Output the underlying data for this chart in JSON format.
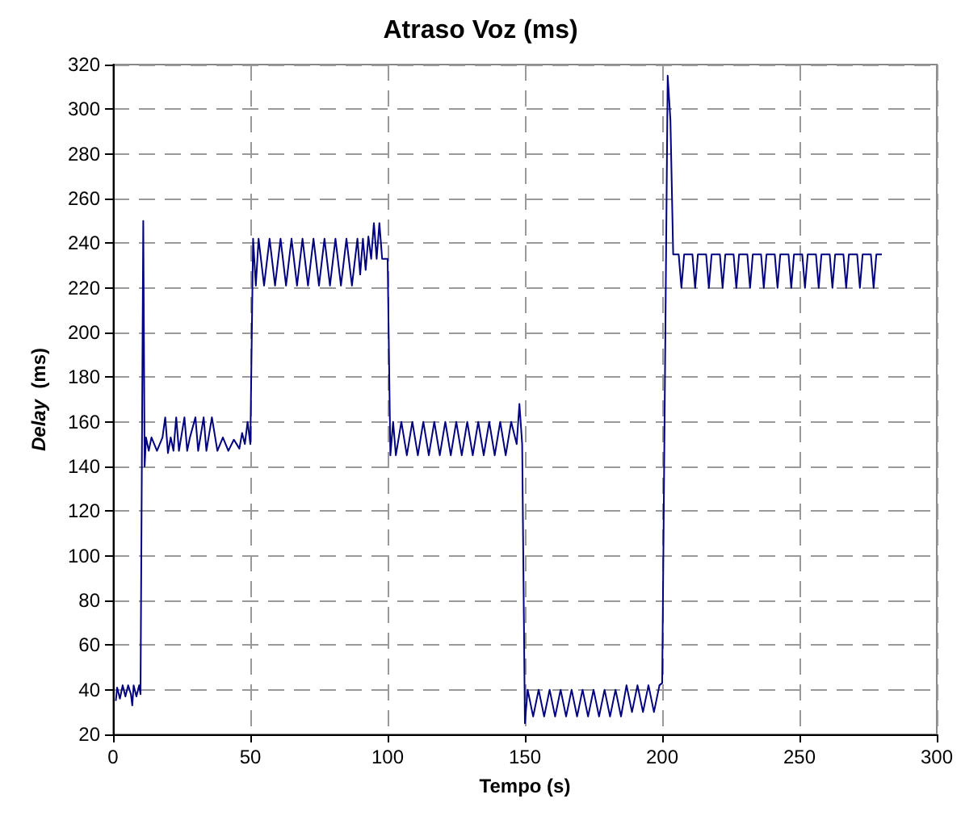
{
  "chart_data": {
    "type": "line",
    "title": "Atraso Voz (ms)",
    "xlabel": "Tempo (s)",
    "ylabel": "Delay  (ms)",
    "xlim": [
      0,
      300
    ],
    "xticks": [
      0,
      50,
      100,
      150,
      200,
      250,
      300
    ],
    "ylim": [
      20,
      320
    ],
    "yticks": [
      20,
      40,
      60,
      80,
      100,
      120,
      140,
      160,
      180,
      200,
      220,
      240,
      260,
      280,
      300,
      320
    ],
    "grid": true,
    "marker": "none",
    "line_style": "solid",
    "x": [
      1,
      1.5,
      2.5,
      3.5,
      4.5,
      5.5,
      6.5,
      7,
      7.5,
      8.5,
      9.5,
      10,
      11,
      11.5,
      12,
      13,
      14,
      16,
      18,
      19,
      20,
      21,
      22,
      23,
      24,
      26,
      27,
      28,
      30,
      31,
      33,
      34,
      36,
      38,
      40,
      42,
      44,
      46,
      47,
      48,
      49,
      50,
      51,
      52,
      53,
      55,
      57,
      59,
      61,
      63,
      65,
      67,
      69,
      71,
      73,
      75,
      77,
      79,
      81,
      83,
      85,
      87,
      89,
      90,
      91,
      92,
      93,
      94,
      95,
      96,
      97,
      98,
      99,
      100,
      101,
      102,
      103,
      105,
      107,
      109,
      111,
      113,
      115,
      117,
      119,
      121,
      123,
      125,
      127,
      129,
      131,
      133,
      135,
      137,
      139,
      141,
      143,
      145,
      147,
      148,
      149,
      150,
      151,
      153,
      155,
      157,
      159,
      161,
      163,
      165,
      167,
      169,
      171,
      173,
      175,
      177,
      179,
      181,
      183,
      185,
      187,
      189,
      191,
      193,
      195,
      197,
      199,
      200,
      202,
      203,
      204,
      206,
      207,
      208,
      211,
      212,
      213,
      216,
      217,
      218,
      221,
      222,
      223,
      226,
      227,
      228,
      231,
      232,
      233,
      236,
      237,
      238,
      241,
      242,
      243,
      246,
      247,
      248,
      251,
      252,
      253,
      256,
      257,
      258,
      261,
      262,
      263,
      266,
      267,
      268,
      271,
      272,
      273,
      276,
      277,
      278,
      280
    ],
    "series": [
      {
        "color": "#000080",
        "values": [
          35,
          41,
          36,
          42,
          37,
          42,
          38,
          33,
          42,
          37,
          42,
          38,
          250,
          140,
          153,
          147,
          153,
          147,
          153,
          162,
          146,
          153,
          147,
          162,
          147,
          162,
          147,
          153,
          162,
          147,
          162,
          147,
          162,
          147,
          153,
          147,
          152,
          148,
          155,
          150,
          160,
          150,
          242,
          221,
          242,
          221,
          242,
          221,
          242,
          221,
          242,
          221,
          242,
          221,
          242,
          221,
          242,
          221,
          242,
          221,
          242,
          221,
          242,
          226,
          242,
          228,
          243,
          233,
          249,
          233,
          249,
          233,
          233,
          233,
          145,
          160,
          145,
          160,
          145,
          160,
          145,
          160,
          145,
          160,
          145,
          160,
          145,
          160,
          145,
          160,
          145,
          160,
          145,
          160,
          145,
          160,
          145,
          160,
          150,
          168,
          150,
          25,
          40,
          28,
          40,
          28,
          40,
          28,
          40,
          28,
          40,
          28,
          40,
          28,
          40,
          28,
          40,
          28,
          40,
          28,
          42,
          30,
          42,
          30,
          42,
          30,
          42,
          43,
          315,
          295,
          235,
          235,
          220,
          235,
          235,
          220,
          235,
          235,
          220,
          235,
          235,
          220,
          235,
          235,
          220,
          235,
          235,
          220,
          235,
          235,
          220,
          235,
          235,
          220,
          235,
          235,
          220,
          235,
          235,
          220,
          235,
          235,
          220,
          235,
          235,
          220,
          235,
          235,
          220,
          235,
          235,
          220,
          235,
          235,
          220,
          235,
          235
        ]
      }
    ]
  }
}
